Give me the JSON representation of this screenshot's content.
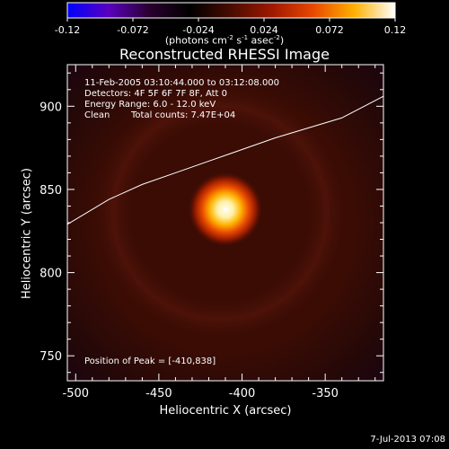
{
  "colorbar": {
    "tick_labels": [
      "-0.12",
      "-0.072",
      "-0.024",
      "0.024",
      "0.072",
      "0.12"
    ],
    "tick_values": [
      -0.12,
      -0.072,
      -0.024,
      0.024,
      0.072,
      0.12
    ],
    "units": {
      "pre": "(photons cm",
      "e1": "-2",
      "mid1": " s",
      "e2": "-1",
      "mid2": " asec",
      "e3": "-2",
      "post": ")"
    },
    "colors": [
      "#0000ff",
      "#5a00c0",
      "#2a0030",
      "#000000",
      "#4a0c00",
      "#a01800",
      "#e84800",
      "#ffb000",
      "#ffffff"
    ]
  },
  "chart_data": {
    "type": "heatmap",
    "title": "Reconstructed RHESSI Image",
    "xlabel": "Heliocentric X (arcsec)",
    "ylabel": "Heliocentric Y (arcsec)",
    "xlim": [
      -505,
      -315
    ],
    "ylim": [
      735,
      925
    ],
    "xticks": [
      -500,
      -450,
      -400,
      -350
    ],
    "yticks": [
      750,
      800,
      850,
      900
    ],
    "peak": {
      "x": -410,
      "y": 838,
      "value": 0.12
    },
    "limb_curve": {
      "x": [
        -505,
        -480,
        -460,
        -440,
        -420,
        -400,
        -380,
        -360,
        -340,
        -315
      ],
      "y": [
        829,
        844,
        853,
        860,
        867,
        874,
        881,
        887,
        893,
        906
      ]
    },
    "annotations": {
      "time_range": "11-Feb-2005 03:10:44.000 to 03:12:08.000",
      "detectors": "Detectors: 4F 5F 6F 7F 8F, Att 0",
      "energy": "Energy Range: 6.0 - 12.0 keV",
      "clean": "Clean",
      "counts": "Total counts: 7.47E+04",
      "peak_position": "Position of Peak = [-410,838]"
    }
  },
  "timestamp": "7-Jul-2013 07:08"
}
